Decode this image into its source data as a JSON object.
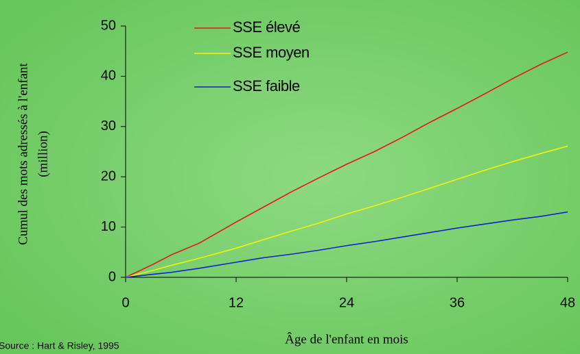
{
  "chart_data": {
    "type": "line",
    "y_label": [
      "Cumul des mots adressés à l'enfant",
      "(million)"
    ],
    "x_label": "Âge de l'enfant en mois",
    "source": "Source : Hart & Risley, 1995",
    "x": [
      0,
      3,
      5,
      8,
      12,
      15,
      18,
      21,
      24,
      27,
      30,
      33,
      36,
      39,
      42,
      45,
      48
    ],
    "series": [
      {
        "name": "SSE élevé",
        "color": "#e8141a",
        "values": [
          0,
          2.6,
          4.5,
          6.8,
          11,
          14,
          17,
          19.8,
          22.5,
          25,
          27.8,
          30.8,
          33.6,
          36.5,
          39.5,
          42.3,
          44.8
        ]
      },
      {
        "name": "SSE moyen",
        "color": "#f2f20a",
        "values": [
          0,
          1.4,
          2.4,
          3.8,
          5.8,
          7.5,
          9.2,
          10.8,
          12.6,
          14.2,
          15.9,
          17.7,
          19.5,
          21.3,
          23,
          24.6,
          26.1
        ]
      },
      {
        "name": "SSE faible",
        "color": "#1020d0",
        "values": [
          0,
          0.6,
          1,
          1.8,
          3,
          3.9,
          4.6,
          5.4,
          6.3,
          7.1,
          8,
          8.9,
          9.8,
          10.6,
          11.4,
          12.1,
          13
        ]
      }
    ],
    "xlim": [
      0,
      48
    ],
    "xticks": [
      0,
      12,
      24,
      36,
      48
    ],
    "ylim": [
      0,
      50
    ],
    "yticks": [
      0,
      10,
      20,
      30,
      40,
      50
    ],
    "legend": "top-left"
  }
}
